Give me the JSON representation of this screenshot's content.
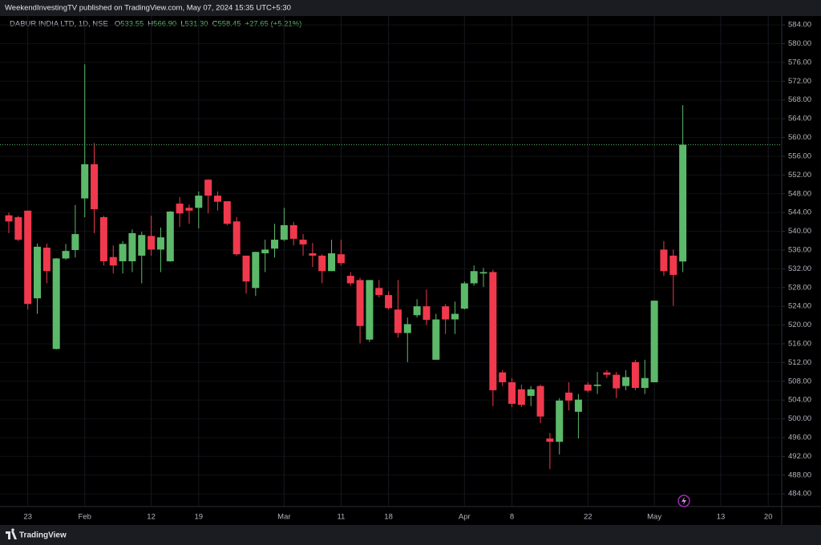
{
  "header": {
    "text": "WeekendInvestingTV published on TradingView.com, May 07, 2024 15:35 UTC+5:30"
  },
  "footer": {
    "brand": "TradingView"
  },
  "chart_data": {
    "type": "candlestick",
    "symbol": "DABUR INDIA LTD, 1D, NSE",
    "legend": [
      {
        "key": "O",
        "text": "533.55"
      },
      {
        "key": "H",
        "text": "566.90"
      },
      {
        "key": "L",
        "text": "531.30"
      },
      {
        "key": "C",
        "text": "558.45"
      }
    ],
    "change": "+27.65 (+5.21%)",
    "up_color": "#5cb96a",
    "down_color": "#f0394d",
    "grid": true,
    "last_price_line": true,
    "categories": [
      null,
      null,
      "23",
      null,
      null,
      null,
      null,
      null,
      "Feb",
      null,
      null,
      null,
      null,
      null,
      null,
      "12",
      null,
      null,
      null,
      null,
      "19",
      null,
      null,
      null,
      null,
      null,
      null,
      null,
      null,
      "Mar",
      null,
      null,
      null,
      null,
      null,
      "11",
      null,
      null,
      null,
      null,
      "18",
      null,
      null,
      null,
      null,
      null,
      null,
      null,
      "Apr",
      null,
      null,
      null,
      null,
      "8",
      null,
      null,
      null,
      null,
      null,
      null,
      null,
      "22",
      null,
      null,
      null,
      null,
      null,
      null,
      "May",
      null,
      null,
      null,
      null,
      null,
      null,
      "13",
      null,
      null,
      null,
      null,
      "20"
    ],
    "open": [
      543.4,
      543,
      544.4,
      525.7,
      536.5,
      514.9,
      534.2,
      536,
      547,
      554.3,
      543,
      534.5,
      533.6,
      533.6,
      534.8,
      539,
      536.1,
      533.6,
      545.9,
      545,
      545,
      551,
      547.6,
      546.4,
      542.1,
      534.8,
      527.9,
      535.3,
      536.3,
      538.2,
      541.3,
      538.2,
      535.3,
      534.8,
      531.5,
      535.1,
      530.5,
      529.6,
      516.9,
      527.9,
      526.4,
      523.3,
      518.3,
      522.1,
      524,
      512.6,
      524,
      521.2,
      523.5,
      528.9,
      531,
      531.3,
      509.9,
      507.8,
      506.3,
      504.9,
      507,
      495.8,
      495.1,
      505.6,
      501.5,
      507.3,
      507,
      509.9,
      509.4,
      507,
      512.1,
      506.6,
      507.8,
      536.1,
      534.8,
      533.55,
      null,
      null,
      null,
      null,
      null,
      null,
      null,
      null,
      null
    ],
    "high": [
      544,
      543.3,
      544.4,
      537.4,
      537.4,
      534.3,
      537.3,
      545.6,
      575.6,
      558.8,
      543.3,
      537,
      537.9,
      540.4,
      539.9,
      543.3,
      540.8,
      544.3,
      547.3,
      545.7,
      548.5,
      551.1,
      548.5,
      546.4,
      543,
      534.8,
      535.6,
      538.2,
      541.6,
      545,
      542,
      539.4,
      537.5,
      535.1,
      538.2,
      538.2,
      531.3,
      530.1,
      529.6,
      529.6,
      527.2,
      529.6,
      521.6,
      525.5,
      527.6,
      522.4,
      524.5,
      525,
      529.3,
      532.7,
      532.2,
      531.8,
      510.4,
      508.7,
      507.3,
      507,
      507.3,
      497,
      504.4,
      507.8,
      505.3,
      507.8,
      510,
      510.4,
      510,
      510.4,
      512.6,
      512.6,
      525.2,
      537.9,
      536.1,
      566.9,
      null,
      null,
      null,
      null,
      null,
      null,
      null,
      null,
      null
    ],
    "low": [
      539.6,
      537.9,
      523.3,
      522.4,
      528.9,
      514.8,
      533.9,
      534.4,
      543,
      539.6,
      532.7,
      531,
      531,
      531.3,
      528.9,
      534.8,
      531.3,
      533.5,
      540.9,
      541.6,
      540.6,
      543.8,
      544.4,
      541.3,
      534.8,
      526.7,
      526.2,
      531.3,
      534.4,
      537.9,
      537,
      534.8,
      532.4,
      528.9,
      531.5,
      532.7,
      528.4,
      516.1,
      516.4,
      525.9,
      523.3,
      517.3,
      512.1,
      521.6,
      520,
      512.6,
      518.1,
      518.1,
      523.3,
      528.4,
      528.1,
      502.7,
      507,
      502.5,
      502.5,
      502.7,
      499.1,
      489.3,
      492.4,
      501.8,
      495.8,
      505.6,
      505.3,
      508.7,
      504.4,
      506.1,
      506.1,
      505.3,
      507.8,
      530.5,
      524.1,
      531.3,
      null,
      null,
      null,
      null,
      null,
      null,
      null,
      null,
      null
    ],
    "close": [
      542.1,
      538.2,
      524.5,
      536.7,
      531.5,
      534.2,
      535.8,
      539.4,
      554.3,
      544.7,
      533.6,
      532.7,
      537.3,
      539.6,
      539.2,
      536.1,
      538.7,
      544.2,
      543.8,
      544.4,
      547.6,
      547.6,
      546.3,
      541.6,
      535.1,
      529.3,
      535.6,
      536.1,
      538.2,
      541.3,
      538.4,
      537.2,
      534.8,
      531.5,
      535.3,
      533.2,
      528.9,
      519.8,
      529.6,
      526.4,
      523.6,
      518.3,
      520.2,
      524,
      521.1,
      521.2,
      521.2,
      522.4,
      528.9,
      531.5,
      531.3,
      506.1,
      507.8,
      503.2,
      503,
      506.3,
      500.5,
      495.1,
      503.9,
      503.9,
      504.1,
      506,
      507.3,
      509.4,
      506.5,
      508.9,
      506.6,
      508.7,
      525.2,
      531.5,
      530.7,
      558.45,
      null,
      null,
      null,
      null,
      null,
      null,
      null,
      null,
      null
    ],
    "ylim": [
      481.3,
      585.9
    ],
    "yticks": [
      {
        "value": 484,
        "label": "484.00"
      },
      {
        "value": 488,
        "label": "488.00"
      },
      {
        "value": 492,
        "label": "492.00"
      },
      {
        "value": 496,
        "label": "496.00"
      },
      {
        "value": 500,
        "label": "500.00"
      },
      {
        "value": 504,
        "label": "504.00"
      },
      {
        "value": 508,
        "label": "508.00"
      },
      {
        "value": 512,
        "label": "512.00"
      },
      {
        "value": 516,
        "label": "516.00"
      },
      {
        "value": 520,
        "label": "520.00"
      },
      {
        "value": 524,
        "label": "524.00"
      },
      {
        "value": 528,
        "label": "528.00"
      },
      {
        "value": 532,
        "label": "532.00"
      },
      {
        "value": 536,
        "label": "536.00"
      },
      {
        "value": 540,
        "label": "540.00"
      },
      {
        "value": 544,
        "label": "544.00"
      },
      {
        "value": 548,
        "label": "548.00"
      },
      {
        "value": 552,
        "label": "552.00"
      },
      {
        "value": 556,
        "label": "556.00"
      },
      {
        "value": 560,
        "label": "560.00"
      },
      {
        "value": 564,
        "label": "564.00"
      },
      {
        "value": 568,
        "label": "568.00"
      },
      {
        "value": 572,
        "label": "572.00"
      },
      {
        "value": 576,
        "label": "576.00"
      },
      {
        "value": 580,
        "label": "580.00"
      },
      {
        "value": 584,
        "label": "584.00"
      }
    ]
  }
}
